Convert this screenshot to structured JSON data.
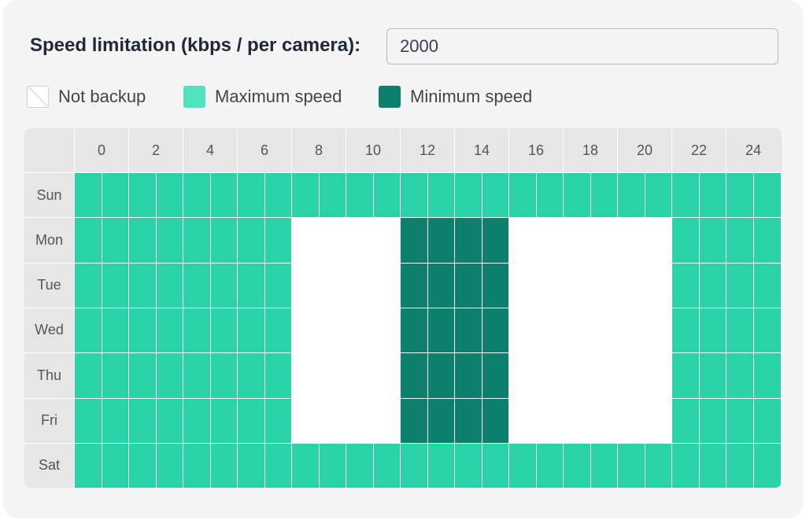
{
  "speed": {
    "label": "Speed limitation (kbps / per camera):",
    "value": "2000"
  },
  "legend": [
    {
      "key": "none",
      "label": "Not backup",
      "color": "#ffffff"
    },
    {
      "key": "max",
      "label": "Maximum speed",
      "color": "#29d3a7"
    },
    {
      "key": "min",
      "label": "Minimum speed",
      "color": "#0c806c"
    }
  ],
  "colors": {
    "none": "#ffffff",
    "max": "#29d3a7",
    "min": "#0c806c"
  },
  "schedule": {
    "hour_labels": [
      "0",
      "2",
      "4",
      "6",
      "8",
      "10",
      "12",
      "14",
      "16",
      "18",
      "20",
      "22",
      "24"
    ],
    "days": [
      "Sun",
      "Mon",
      "Tue",
      "Wed",
      "Thu",
      "Fri",
      "Sat"
    ],
    "rows": [
      "MMMMMMMMMMMMMMMMMMMMMMMMMM",
      "MMMMMMMMNNNNmmmmNNNNNNMMMM",
      "MMMMMMMMNNNNmmmmNNNNNNMMMM",
      "MMMMMMMMNNNNmmmmNNNNNNMMMM",
      "MMMMMMMMNNNNmmmmNNNNNNMMMM",
      "MMMMMMMMNNNNmmmmNNNNNNMMMM",
      "MMMMMMMMMMMMMMMMMMMMMMMMMM"
    ]
  }
}
